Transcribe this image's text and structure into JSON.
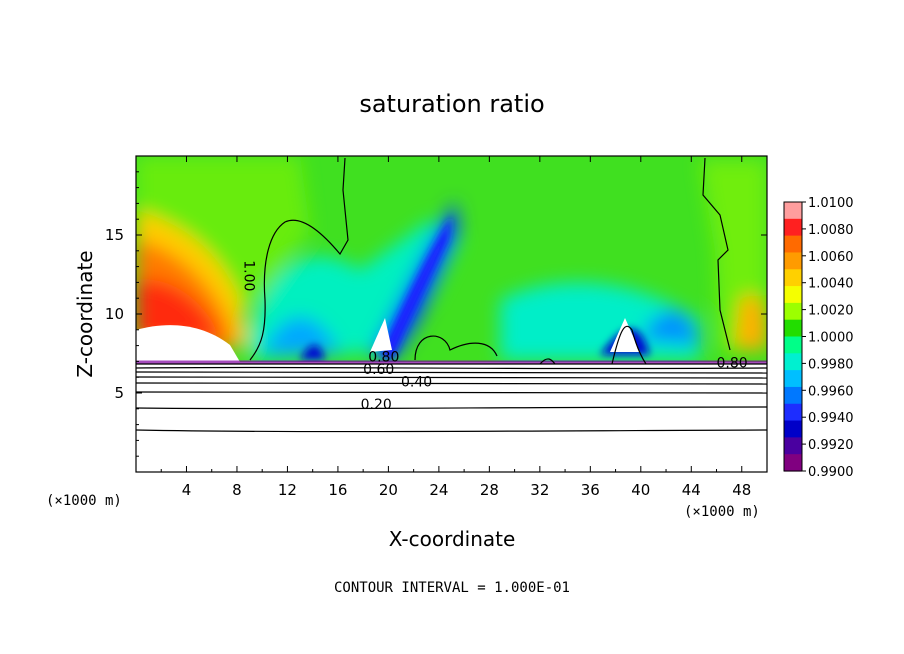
{
  "chart_data": {
    "type": "heatmap",
    "title": "saturation ratio",
    "xlabel": "X-coordinate",
    "ylabel": "Z-coordinate",
    "x_unit_label": "(×1000 m)",
    "xlim": [
      0,
      50
    ],
    "ylim": [
      0,
      20
    ],
    "x_ticks": [
      4,
      8,
      12,
      16,
      20,
      24,
      28,
      32,
      36,
      40,
      44,
      48
    ],
    "y_ticks": [
      5,
      10,
      15
    ],
    "colorbar": {
      "levels": [
        "1.0100",
        "1.0080",
        "1.0060",
        "1.0040",
        "1.0020",
        "1.0000",
        "0.9980",
        "0.9960",
        "0.9940",
        "0.9920",
        "0.9900"
      ],
      "min": 0.99,
      "max": 1.01,
      "colors": [
        "#ff9e9e",
        "#ff2020",
        "#ff6a00",
        "#ff9b00",
        "#ffd000",
        "#f5ff00",
        "#9cff00",
        "#22dd00",
        "#00ff88",
        "#00f0d0",
        "#00bfff",
        "#0078ff",
        "#1d2dff",
        "#0000c8",
        "#4a00a0",
        "#800080"
      ]
    },
    "contour_labels": [
      {
        "text": "1.00",
        "x": 8.6,
        "y": 13.4
      },
      {
        "text": "0.80",
        "x": 18.4,
        "y": 7.0
      },
      {
        "text": "0.60",
        "x": 18.0,
        "y": 6.2
      },
      {
        "text": "0.40",
        "x": 21.0,
        "y": 5.4
      },
      {
        "text": "0.20",
        "x": 17.8,
        "y": 4.0
      },
      {
        "text": "0.80",
        "x": 46.0,
        "y": 6.6
      }
    ],
    "contour_interval_text": "CONTOUR INTERVAL = 1.000E-01"
  }
}
